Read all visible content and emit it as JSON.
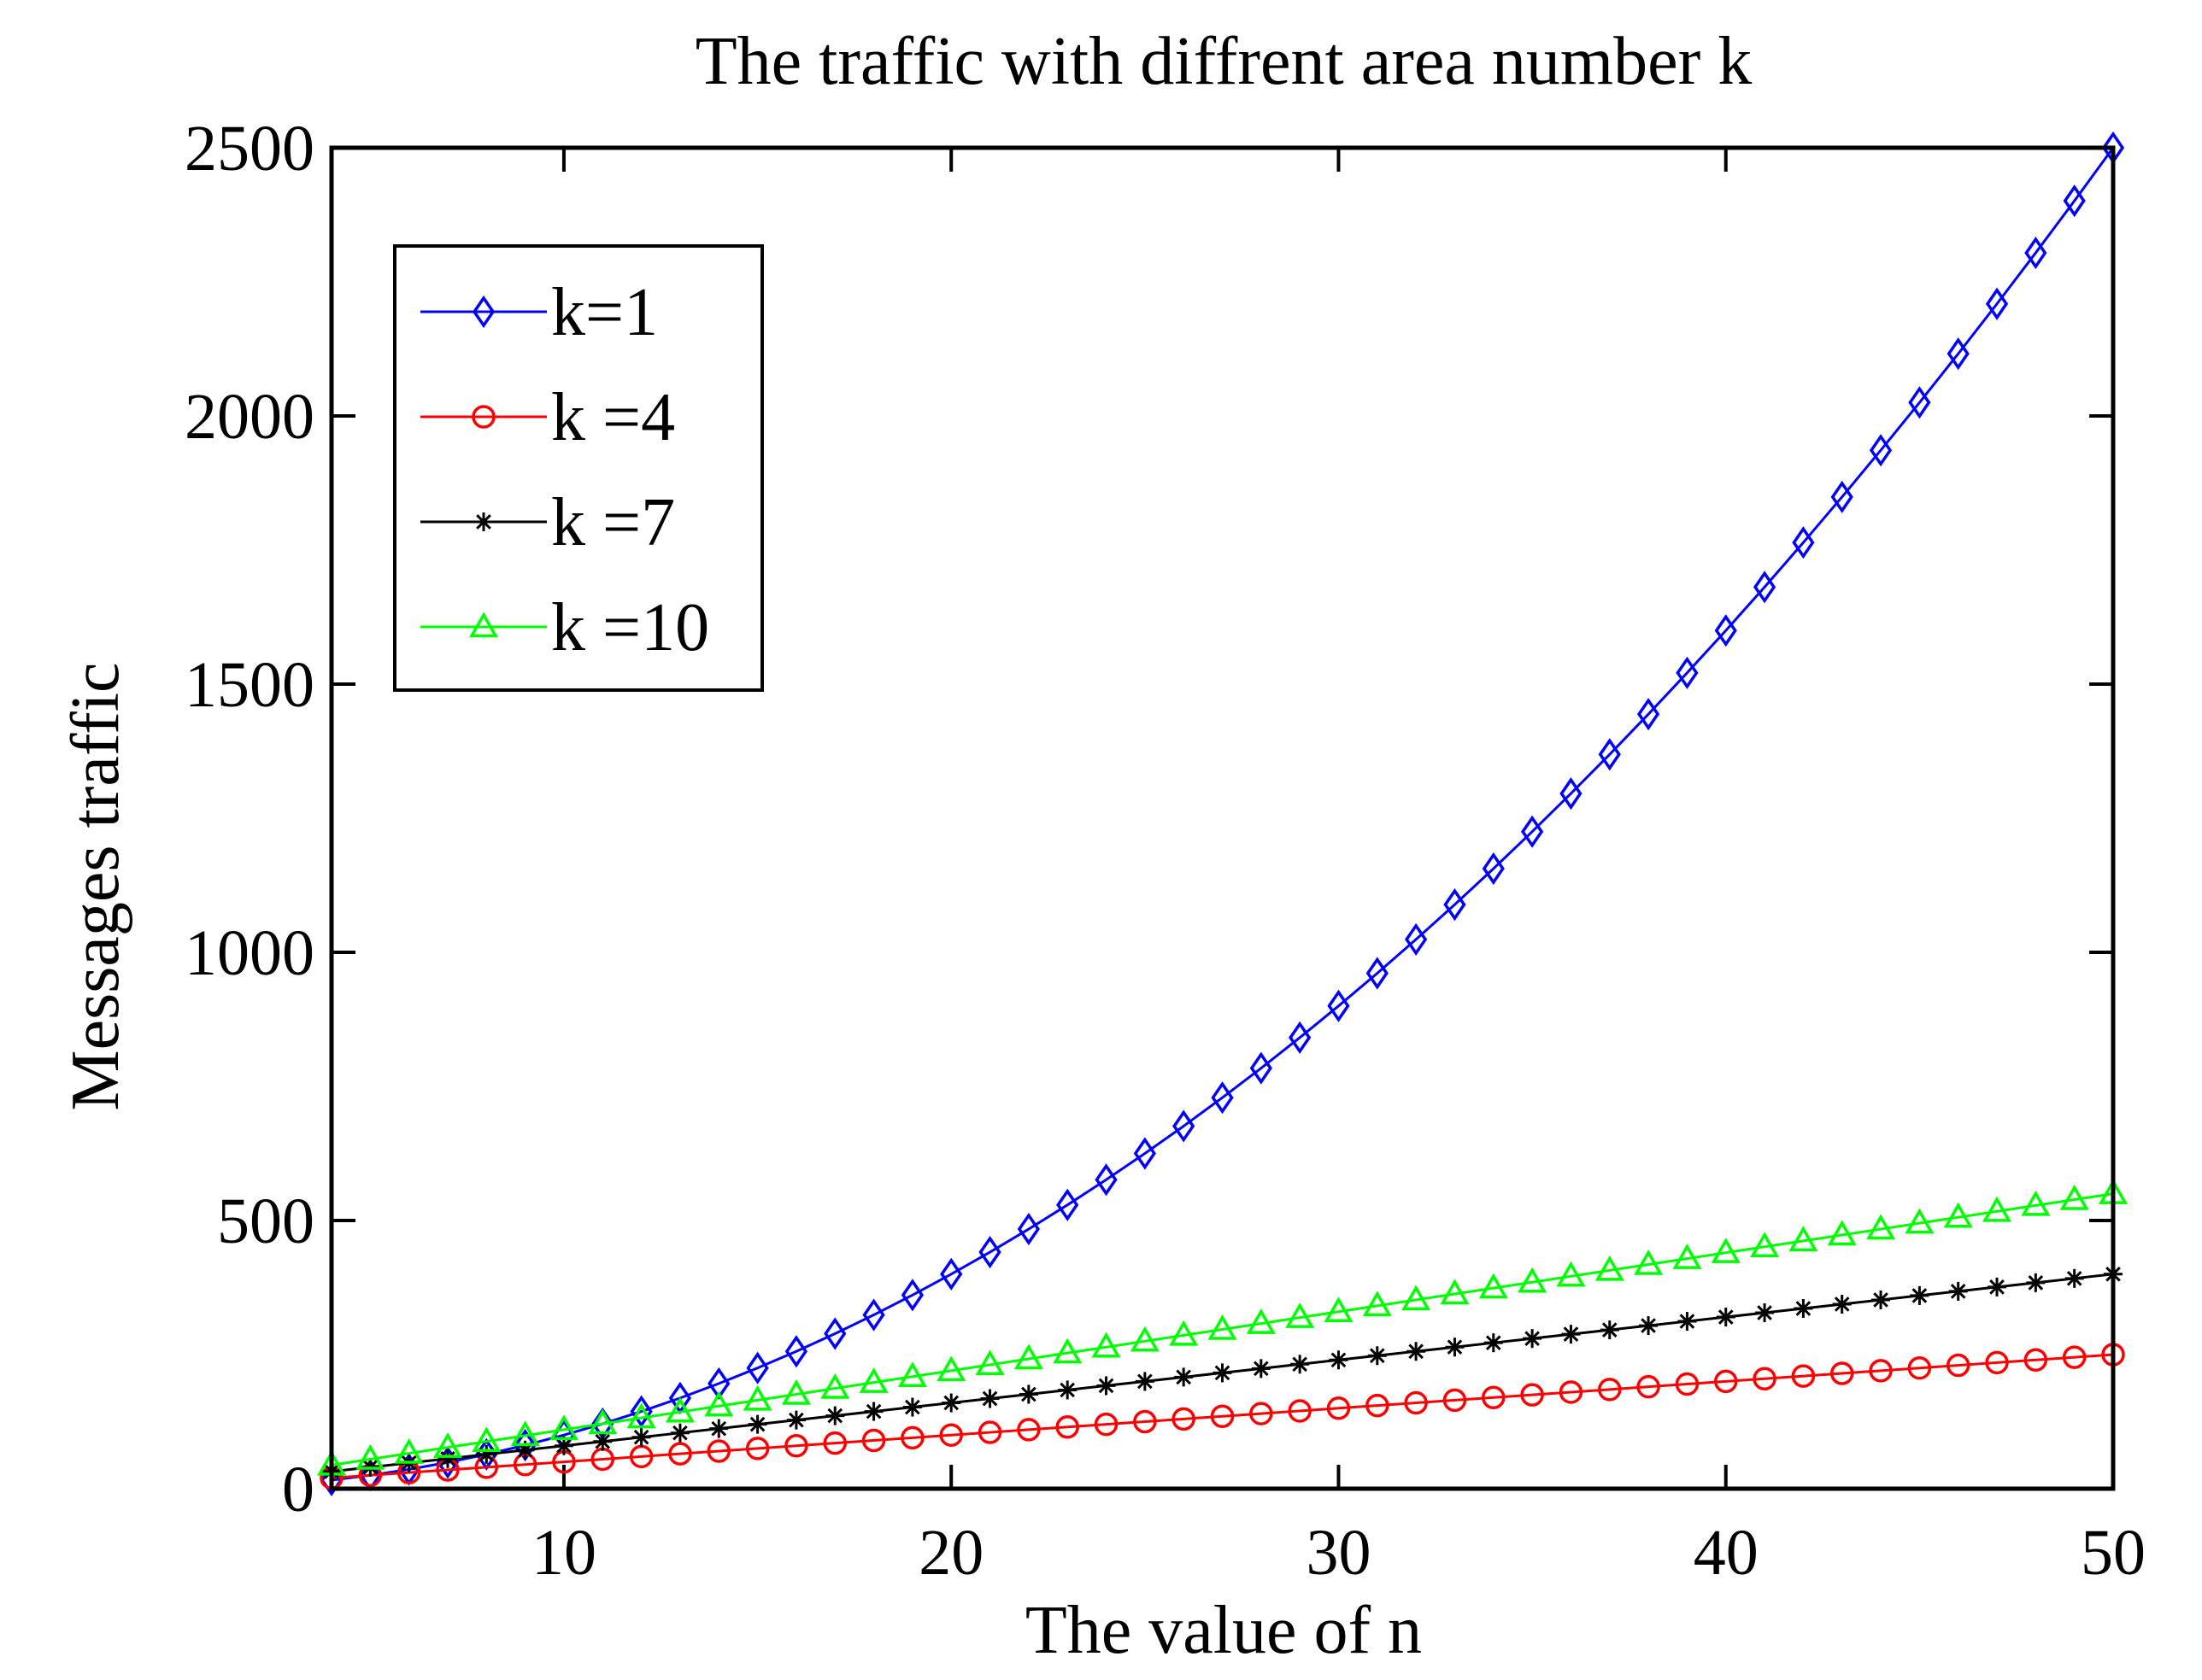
{
  "chart_data": {
    "type": "line",
    "title": "The traffic with diffrent area number k",
    "xlabel": "The value of n",
    "ylabel": "Messages traffic",
    "xlim": [
      4,
      50
    ],
    "ylim": [
      0,
      2500
    ],
    "xticks": [
      10,
      20,
      30,
      40,
      50
    ],
    "yticks": [
      0,
      500,
      1000,
      1500,
      2000,
      2500
    ],
    "grid": false,
    "legend_position": "top-left",
    "x": [
      4,
      5,
      6,
      7,
      8,
      9,
      10,
      11,
      12,
      13,
      14,
      15,
      16,
      17,
      18,
      19,
      20,
      21,
      22,
      23,
      24,
      25,
      26,
      27,
      28,
      29,
      30,
      31,
      32,
      33,
      34,
      35,
      36,
      37,
      38,
      39,
      40,
      41,
      42,
      43,
      44,
      45,
      46,
      47,
      48,
      49,
      50
    ],
    "series": [
      {
        "name": "k=1",
        "color": "#0000ff",
        "marker": "diamond",
        "values": [
          16,
          25,
          36,
          49,
          64,
          81,
          100,
          121,
          144,
          169,
          196,
          225,
          256,
          289,
          324,
          361,
          400,
          441,
          484,
          529,
          576,
          625,
          676,
          729,
          784,
          841,
          900,
          961,
          1024,
          1089,
          1156,
          1225,
          1296,
          1369,
          1444,
          1521,
          1600,
          1681,
          1764,
          1849,
          1936,
          2025,
          2116,
          2209,
          2304,
          2401,
          2500
        ]
      },
      {
        "name": "k =4",
        "color": "#ff0000",
        "marker": "circle",
        "values": [
          20,
          25,
          30,
          35,
          40,
          45,
          50,
          55,
          60,
          65,
          70,
          75,
          80,
          85,
          90,
          95,
          100,
          105,
          110,
          115,
          120,
          125,
          130,
          135,
          140,
          145,
          150,
          155,
          160,
          165,
          170,
          175,
          180,
          185,
          190,
          195,
          200,
          205,
          210,
          215,
          220,
          225,
          230,
          235,
          240,
          245,
          250
        ]
      },
      {
        "name": "k =7",
        "color": "#000000",
        "marker": "star",
        "values": [
          32,
          40,
          48,
          56,
          64,
          72,
          80,
          88,
          96,
          104,
          112,
          120,
          128,
          136,
          144,
          152,
          160,
          168,
          176,
          184,
          192,
          200,
          208,
          216,
          224,
          232,
          240,
          248,
          256,
          264,
          272,
          280,
          288,
          296,
          304,
          312,
          320,
          328,
          336,
          344,
          352,
          360,
          368,
          376,
          384,
          392,
          400
        ]
      },
      {
        "name": "k =10",
        "color": "#00ff00",
        "marker": "triangle",
        "values": [
          44,
          55,
          66,
          77,
          88,
          99,
          110,
          121,
          132,
          143,
          154,
          165,
          176,
          187,
          198,
          209,
          220,
          231,
          242,
          253,
          264,
          275,
          286,
          297,
          308,
          319,
          330,
          341,
          352,
          363,
          374,
          385,
          396,
          407,
          418,
          429,
          440,
          451,
          462,
          473,
          484,
          495,
          506,
          517,
          528,
          539,
          550
        ]
      }
    ]
  }
}
